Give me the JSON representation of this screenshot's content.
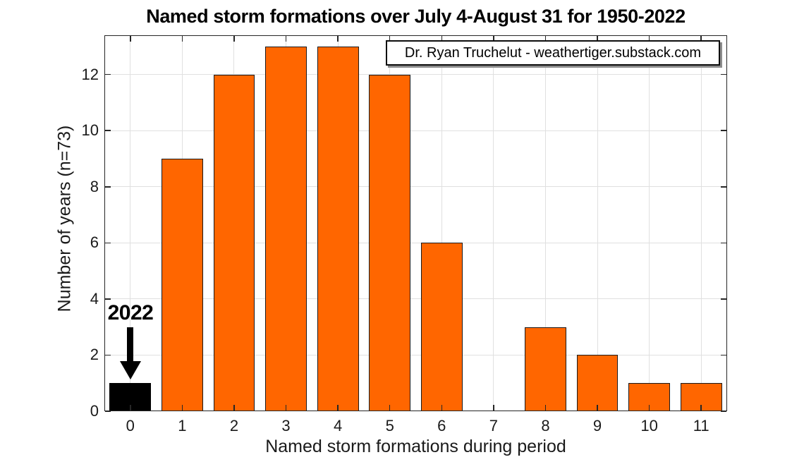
{
  "title": "Named storm formations over July 4-August 31 for 1950-2022",
  "credit": {
    "text": "Dr. Ryan Truchelut - weathertiger.substack.com"
  },
  "chart_data": {
    "type": "bar",
    "title": "Named storm formations over July 4-August 31 for 1950-2022",
    "xlabel": "Named storm formations during period",
    "ylabel": "Number of years (n=73)",
    "categories": [
      "0",
      "1",
      "2",
      "3",
      "4",
      "5",
      "6",
      "7",
      "8",
      "9",
      "10",
      "11"
    ],
    "values": [
      1,
      9,
      12,
      13,
      13,
      12,
      6,
      0,
      3,
      2,
      1,
      1
    ],
    "yticks": [
      0,
      2,
      4,
      6,
      8,
      10,
      12
    ],
    "ylim": [
      0,
      13.4
    ],
    "grid": true,
    "legend_position": "none",
    "bar_width_fraction": 0.8,
    "annotation": {
      "label": "2022",
      "target_category": "0"
    },
    "colors": {
      "bar_fill": "#FF6600",
      "bar_edge": "#1a1a1a",
      "highlight_fill": "#000000",
      "highlight_edge": "#000000",
      "grid": "#e0e0e0",
      "axis": "#262626"
    },
    "highlight_index": 0
  }
}
